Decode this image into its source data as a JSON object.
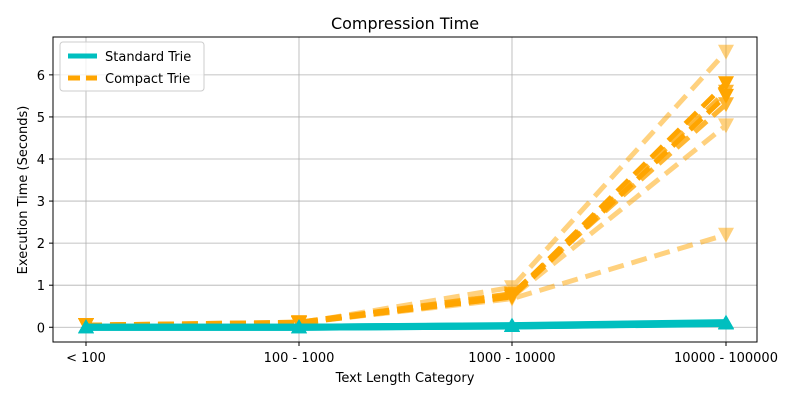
{
  "chart_data": {
    "type": "line",
    "title": "Compression Time",
    "xlabel": "Text Length Category",
    "ylabel": "Execution Time (Seconds)",
    "categories": [
      "< 100",
      "100 - 1000",
      "1000 - 10000",
      "10000 - 100000"
    ],
    "ylim": [
      -0.35,
      6.9
    ],
    "yticks": [
      0,
      1,
      2,
      3,
      4,
      5,
      6
    ],
    "grid": true,
    "legend_position": "top-left",
    "legend": [
      {
        "label": "Standard Trie",
        "color": "#00bfbf",
        "style": "solid"
      },
      {
        "label": "Compact Trie",
        "color": "#ffa500",
        "style": "dashed"
      }
    ],
    "series": [
      {
        "group": "Standard Trie",
        "color": "#00bfbf",
        "marker": "triangle-up",
        "opacity": 1,
        "values": [
          0.0,
          0.0,
          0.03,
          0.09
        ]
      },
      {
        "group": "Standard Trie",
        "color": "#00bfbf",
        "marker": "triangle-up",
        "opacity": 1,
        "values": [
          0.0,
          0.0,
          0.03,
          0.1
        ]
      },
      {
        "group": "Standard Trie",
        "color": "#00bfbf",
        "marker": "triangle-up",
        "opacity": 1,
        "values": [
          0.0,
          0.0,
          0.04,
          0.11
        ]
      },
      {
        "group": "Compact Trie",
        "color": "#ffa500",
        "marker": "triangle-down",
        "opacity": 0.5,
        "values": [
          0.05,
          0.1,
          0.95,
          6.55
        ]
      },
      {
        "group": "Compact Trie",
        "color": "#ffa500",
        "marker": "triangle-down",
        "opacity": 0.5,
        "values": [
          0.05,
          0.1,
          0.72,
          4.8
        ]
      },
      {
        "group": "Compact Trie",
        "color": "#ffa500",
        "marker": "triangle-down",
        "opacity": 0.5,
        "values": [
          0.05,
          0.1,
          0.68,
          2.2
        ]
      },
      {
        "group": "Compact Trie",
        "color": "#ffa500",
        "marker": "triangle-down",
        "opacity": 0.8,
        "values": [
          0.05,
          0.12,
          0.8,
          5.3
        ]
      },
      {
        "group": "Compact Trie",
        "color": "#ffa500",
        "marker": "triangle-down",
        "opacity": 0.8,
        "values": [
          0.05,
          0.12,
          0.78,
          5.6
        ]
      },
      {
        "group": "Compact Trie",
        "color": "#ffa500",
        "marker": "triangle-down",
        "opacity": 1,
        "values": [
          0.05,
          0.1,
          0.75,
          5.8
        ]
      },
      {
        "group": "Compact Trie",
        "color": "#ffa500",
        "marker": "triangle-down",
        "opacity": 1,
        "values": [
          0.05,
          0.1,
          0.72,
          5.5
        ]
      }
    ]
  }
}
